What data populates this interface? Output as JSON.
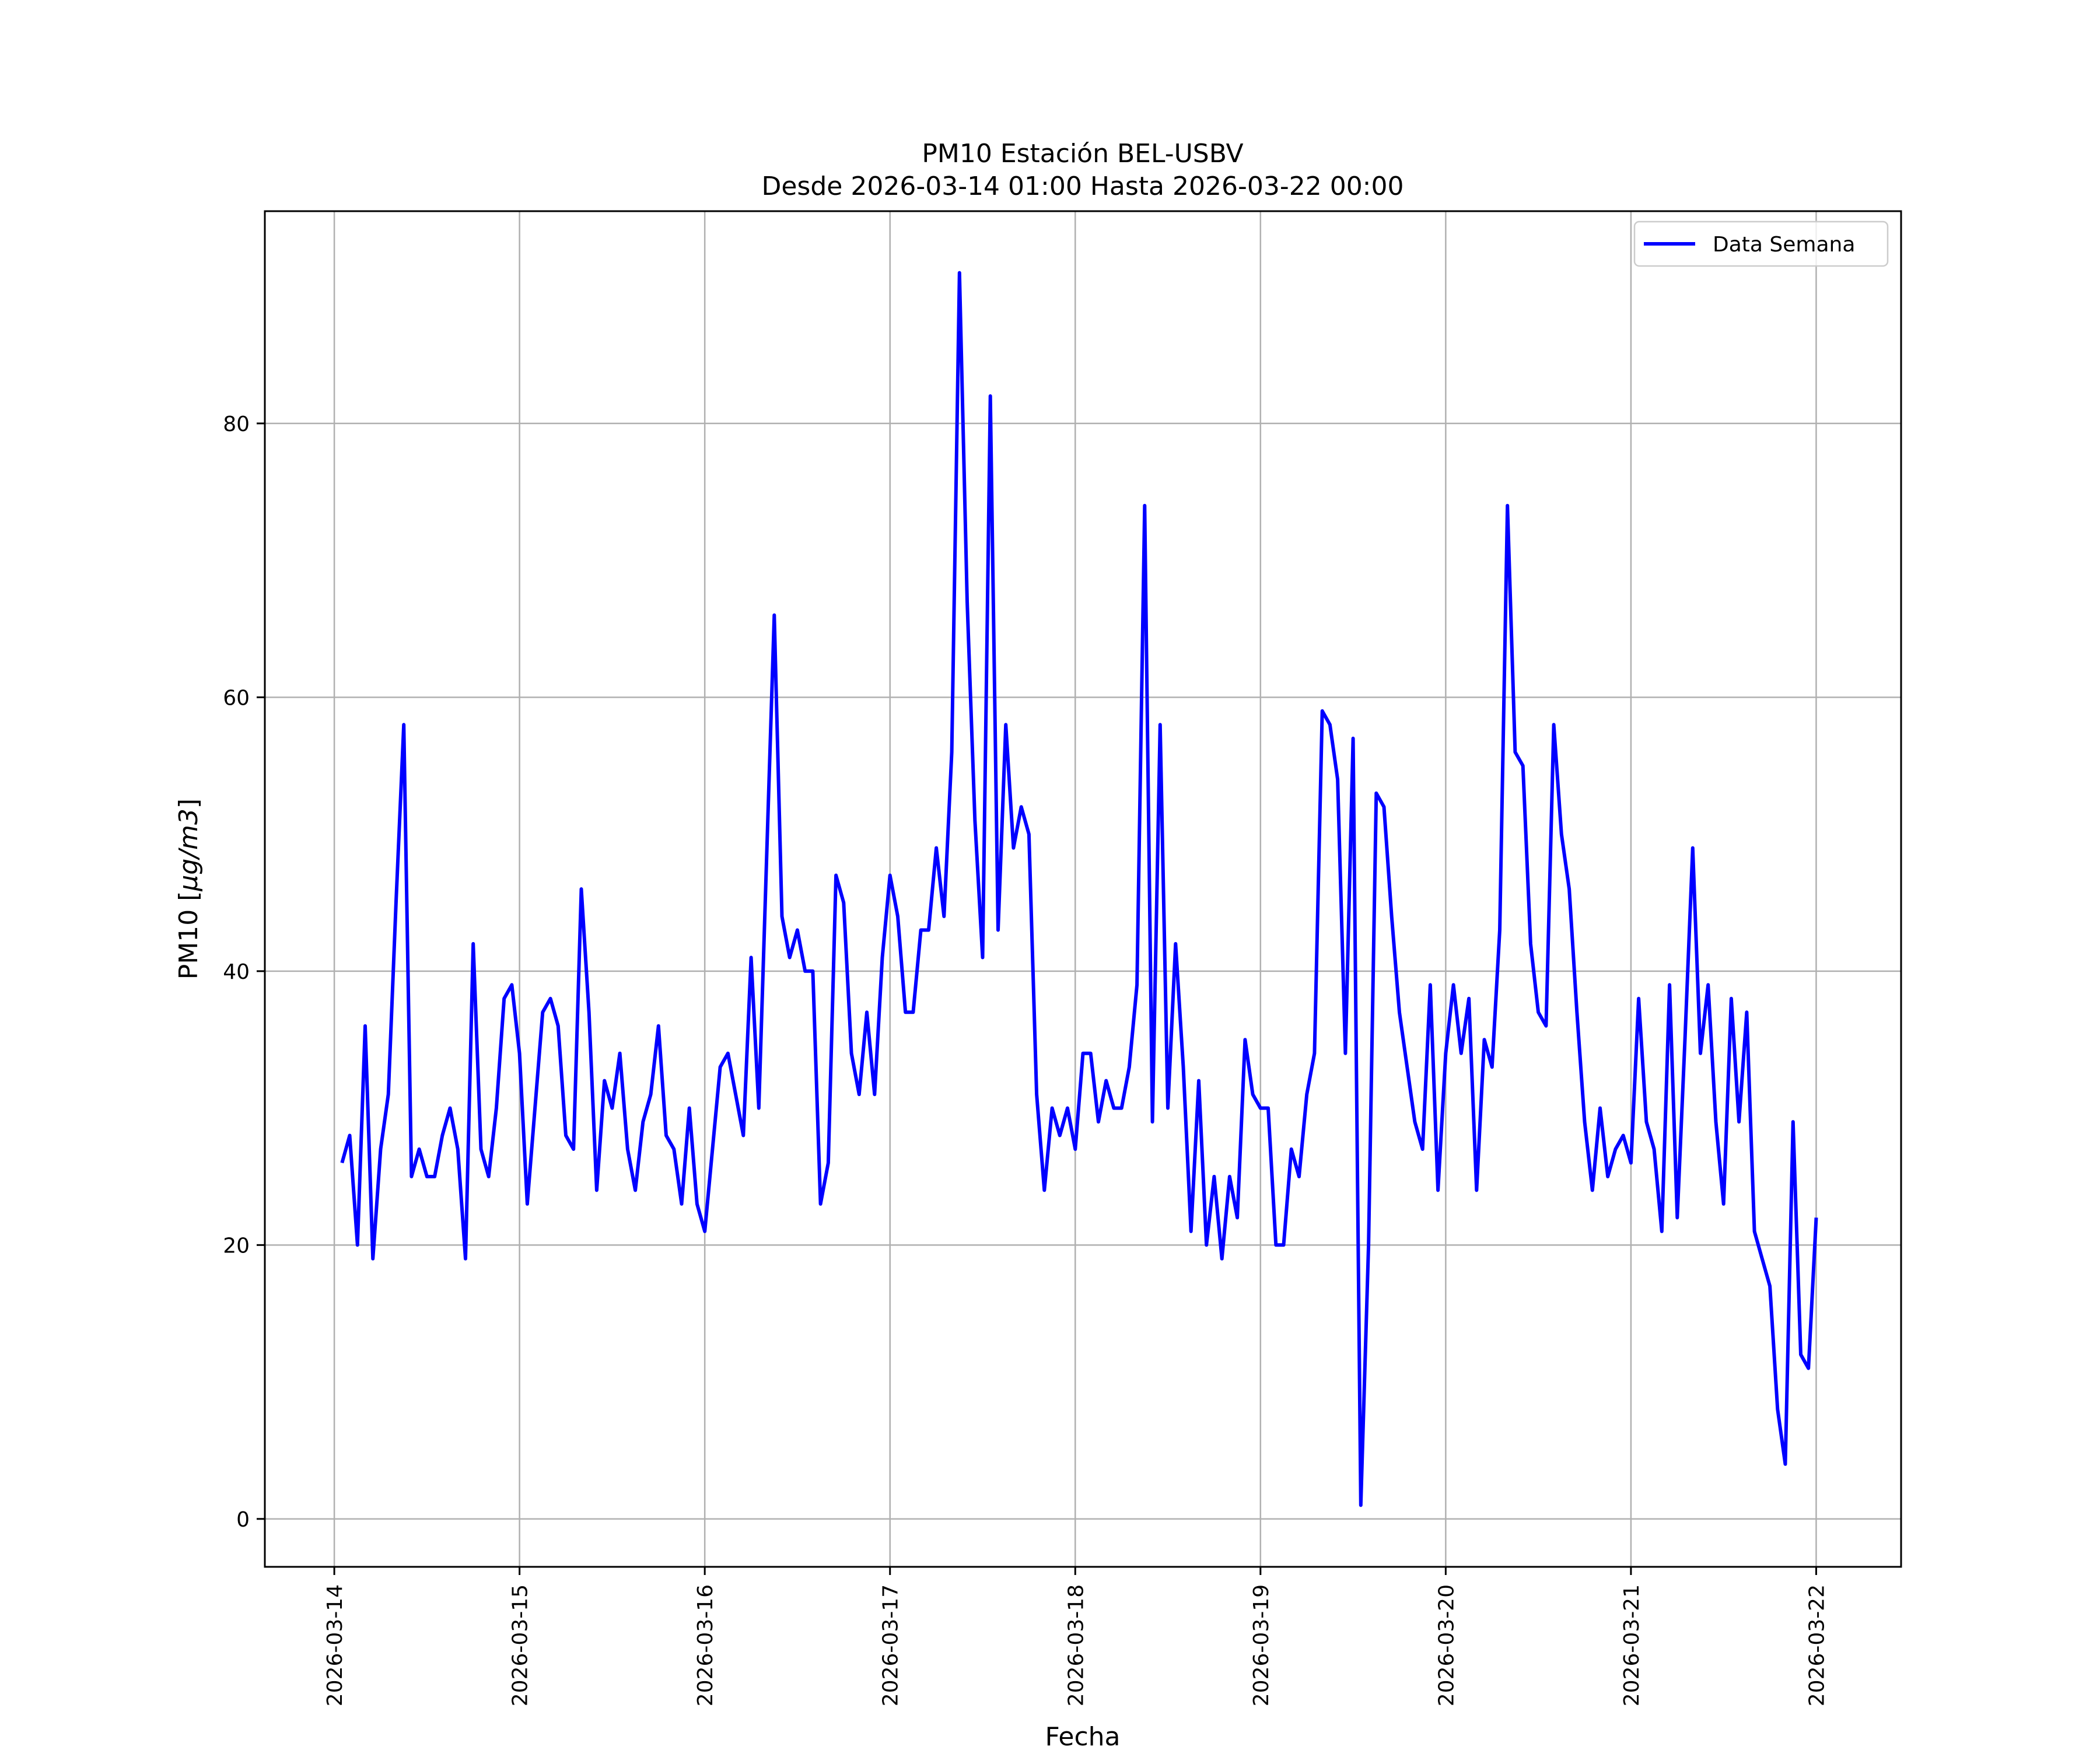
{
  "chart_data": {
    "type": "line",
    "title": "PM10 Estación BEL-USBV",
    "subtitle": "Desde 2026-03-14 01:00 Hasta 2026-03-22 00:00",
    "xlabel": "Fecha",
    "ylabel_text": "PM10 [",
    "ylabel_unit": "μg/m3",
    "ylabel_close": "]",
    "xlim": [
      "2026-03-13 15:00",
      "2026-03-22 11:00"
    ],
    "ylim": [
      -3.5,
      95.5
    ],
    "grid": true,
    "legend_position": "top-right",
    "x_ticks": [
      "2026-03-14",
      "2026-03-15",
      "2026-03-16",
      "2026-03-17",
      "2026-03-18",
      "2026-03-19",
      "2026-03-20",
      "2026-03-21",
      "2026-03-22"
    ],
    "y_ticks": [
      0,
      20,
      40,
      60,
      80
    ],
    "series": [
      {
        "name": "Data Semana",
        "color": "#0000ff",
        "start": "2026-03-14 01:00",
        "interval": "1 hour",
        "values": [
          26,
          28,
          20,
          36,
          19,
          27,
          31,
          45,
          58,
          25,
          27,
          25,
          25,
          28,
          30,
          27,
          19,
          42,
          27,
          25,
          30,
          38,
          39,
          34,
          23,
          30,
          37,
          38,
          36,
          28,
          27,
          46,
          37,
          24,
          32,
          30,
          34,
          27,
          24,
          29,
          31,
          36,
          28,
          27,
          23,
          30,
          23,
          21,
          27,
          33,
          34,
          31,
          28,
          41,
          30,
          48,
          66,
          44,
          41,
          43,
          40,
          40,
          23,
          26,
          47,
          45,
          34,
          31,
          37,
          31,
          41,
          47,
          44,
          37,
          37,
          43,
          43,
          49,
          44,
          56,
          91,
          67,
          51,
          41,
          82,
          43,
          58,
          49,
          52,
          50,
          31,
          24,
          30,
          28,
          30,
          27,
          34,
          34,
          29,
          32,
          30,
          30,
          33,
          39,
          74,
          29,
          58,
          30,
          42,
          33,
          21,
          32,
          20,
          25,
          19,
          25,
          22,
          35,
          31,
          30,
          30,
          20,
          20,
          27,
          25,
          31,
          34,
          59,
          58,
          54,
          34,
          57,
          1,
          20,
          53,
          52,
          44,
          37,
          33,
          29,
          27,
          39,
          24,
          34,
          39,
          34,
          38,
          24,
          35,
          33,
          43,
          74,
          56,
          55,
          42,
          37,
          36,
          58,
          50,
          46,
          37,
          29,
          24,
          30,
          25,
          27,
          28,
          26,
          38,
          29,
          27,
          21,
          39,
          22,
          35,
          49,
          34,
          39,
          29,
          23,
          38,
          29,
          37,
          21,
          19,
          17,
          8,
          4,
          29,
          12,
          11,
          22
        ]
      }
    ]
  }
}
